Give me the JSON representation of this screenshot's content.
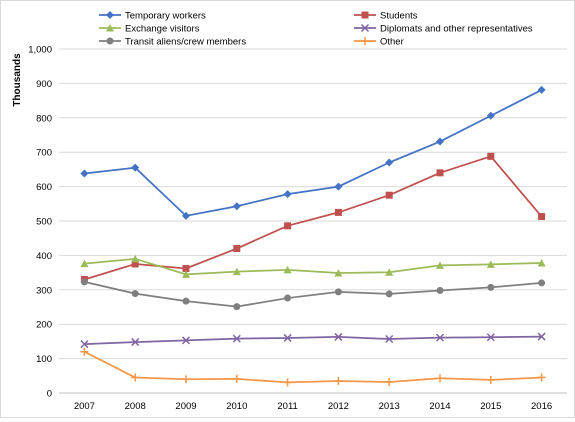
{
  "chart_data": {
    "type": "line",
    "title": "",
    "xlabel": "",
    "ylabel": "Thousands",
    "ylim": [
      0,
      1000
    ],
    "y_ticks": [
      "0",
      "100",
      "200",
      "300",
      "400",
      "500",
      "600",
      "700",
      "800",
      "900",
      "1,000"
    ],
    "categories": [
      "2007",
      "2008",
      "2009",
      "2010",
      "2011",
      "2012",
      "2013",
      "2014",
      "2015",
      "2016"
    ],
    "grid": "horizontal",
    "legend_position": "top",
    "series": [
      {
        "name": "Temporary workers",
        "color": "#4472c4",
        "marker": "diamond",
        "values": [
          638,
          655,
          515,
          543,
          578,
          600,
          670,
          731,
          806,
          881
        ]
      },
      {
        "name": "Students",
        "color": "#c0504d",
        "marker": "square",
        "values": [
          330,
          375,
          362,
          420,
          486,
          525,
          575,
          640,
          688,
          513
        ]
      },
      {
        "name": "Exchange visitors",
        "color": "#9bbb59",
        "marker": "triangle",
        "values": [
          376,
          390,
          345,
          353,
          358,
          349,
          351,
          371,
          374,
          378
        ]
      },
      {
        "name": "Diplomats and other representatives",
        "color": "#8064a2",
        "marker": "x",
        "values": [
          142,
          148,
          153,
          158,
          160,
          163,
          157,
          161,
          162,
          164
        ]
      },
      {
        "name": "Transit aliens/crew members",
        "color": "#7f7f7f",
        "marker": "circle",
        "values": [
          323,
          289,
          267,
          251,
          276,
          294,
          288,
          298,
          307,
          320
        ]
      },
      {
        "name": "Other",
        "color": "#f79646",
        "marker": "plus",
        "values": [
          120,
          45,
          40,
          41,
          31,
          35,
          32,
          43,
          38,
          45
        ]
      }
    ]
  }
}
